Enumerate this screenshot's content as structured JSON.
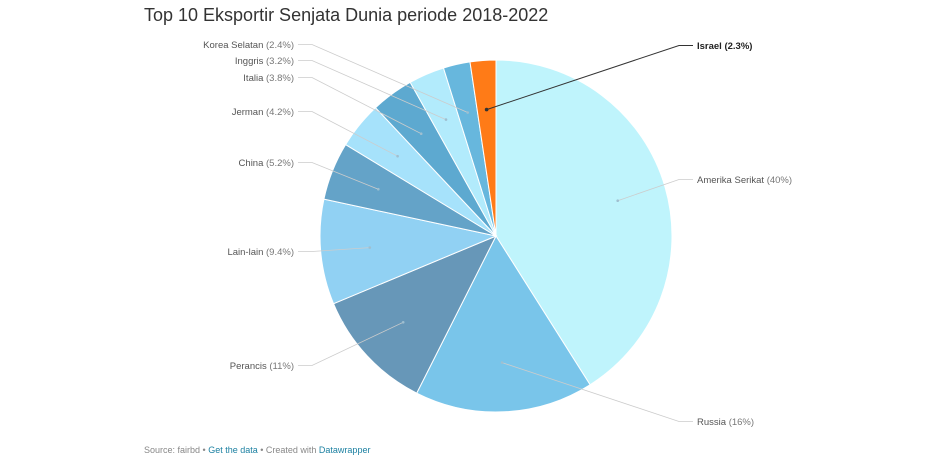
{
  "chart_data": {
    "type": "pie",
    "title": "Top 10 Eksportir Senjata Dunia periode 2018-2022",
    "slices": [
      {
        "label": "Amerika Serikat",
        "pct_label": "40%",
        "value": 40,
        "color": "#bff4fc"
      },
      {
        "label": "Russia",
        "pct_label": "16%",
        "value": 16,
        "color": "#79c5ea"
      },
      {
        "label": "Perancis",
        "pct_label": "11%",
        "value": 11,
        "color": "#6797b8"
      },
      {
        "label": "Lain-lain",
        "pct_label": "9.4%",
        "value": 9.4,
        "color": "#91d1f3"
      },
      {
        "label": "China",
        "pct_label": "5.2%",
        "value": 5.2,
        "color": "#64a3c8"
      },
      {
        "label": "Jerman",
        "pct_label": "4.2%",
        "value": 4.2,
        "color": "#a6e2fb"
      },
      {
        "label": "Italia",
        "pct_label": "3.8%",
        "value": 3.8,
        "color": "#5da9d0"
      },
      {
        "label": "Inggris",
        "pct_label": "3.2%",
        "value": 3.2,
        "color": "#b2ebfc"
      },
      {
        "label": "Korea Selatan",
        "pct_label": "2.4%",
        "value": 2.4,
        "color": "#67b7dd"
      },
      {
        "label": "Israel",
        "pct_label": "2.3%",
        "value": 2.3,
        "color": "#ff7b17",
        "highlight": true
      }
    ]
  },
  "footer": {
    "source_prefix": "Source: fairbd • ",
    "get_data_link": "Get the data",
    "created_with": " • Created with ",
    "datawrapper_link": "Datawrapper"
  }
}
